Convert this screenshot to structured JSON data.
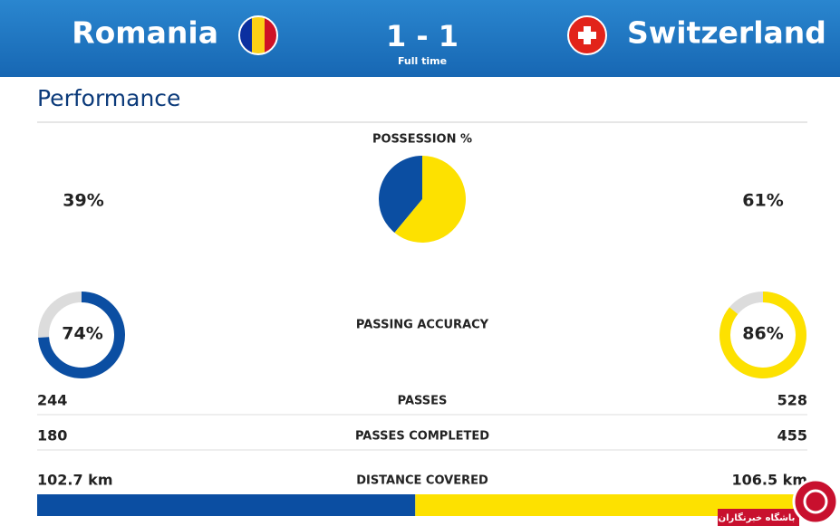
{
  "header": {
    "home": "Romania",
    "away": "Switzerland",
    "score": "1 - 1",
    "status": "Full time"
  },
  "section_title": "Performance",
  "colors": {
    "home": "#0b4ea2",
    "away": "#fde100",
    "track": "#dcdcdc"
  },
  "possession": {
    "label": "POSSESSION %",
    "values": [
      39,
      61
    ],
    "value_labels": [
      "39%",
      "61%"
    ]
  },
  "passing_accuracy": {
    "label": "PASSING ACCURACY",
    "values": [
      74,
      86
    ],
    "value_labels": [
      "74%",
      "86%"
    ],
    "max": 100
  },
  "passes": {
    "label": "PASSES",
    "values": [
      244,
      528
    ]
  },
  "passes_completed": {
    "label": "PASSES COMPLETED",
    "values": [
      180,
      455
    ]
  },
  "distance": {
    "label": "DISTANCE COVERED",
    "values": [
      102.7,
      106.5
    ],
    "value_labels": [
      "102.7 km",
      "106.5 km"
    ]
  },
  "watermark": "باشگاه خبرنگاران"
}
